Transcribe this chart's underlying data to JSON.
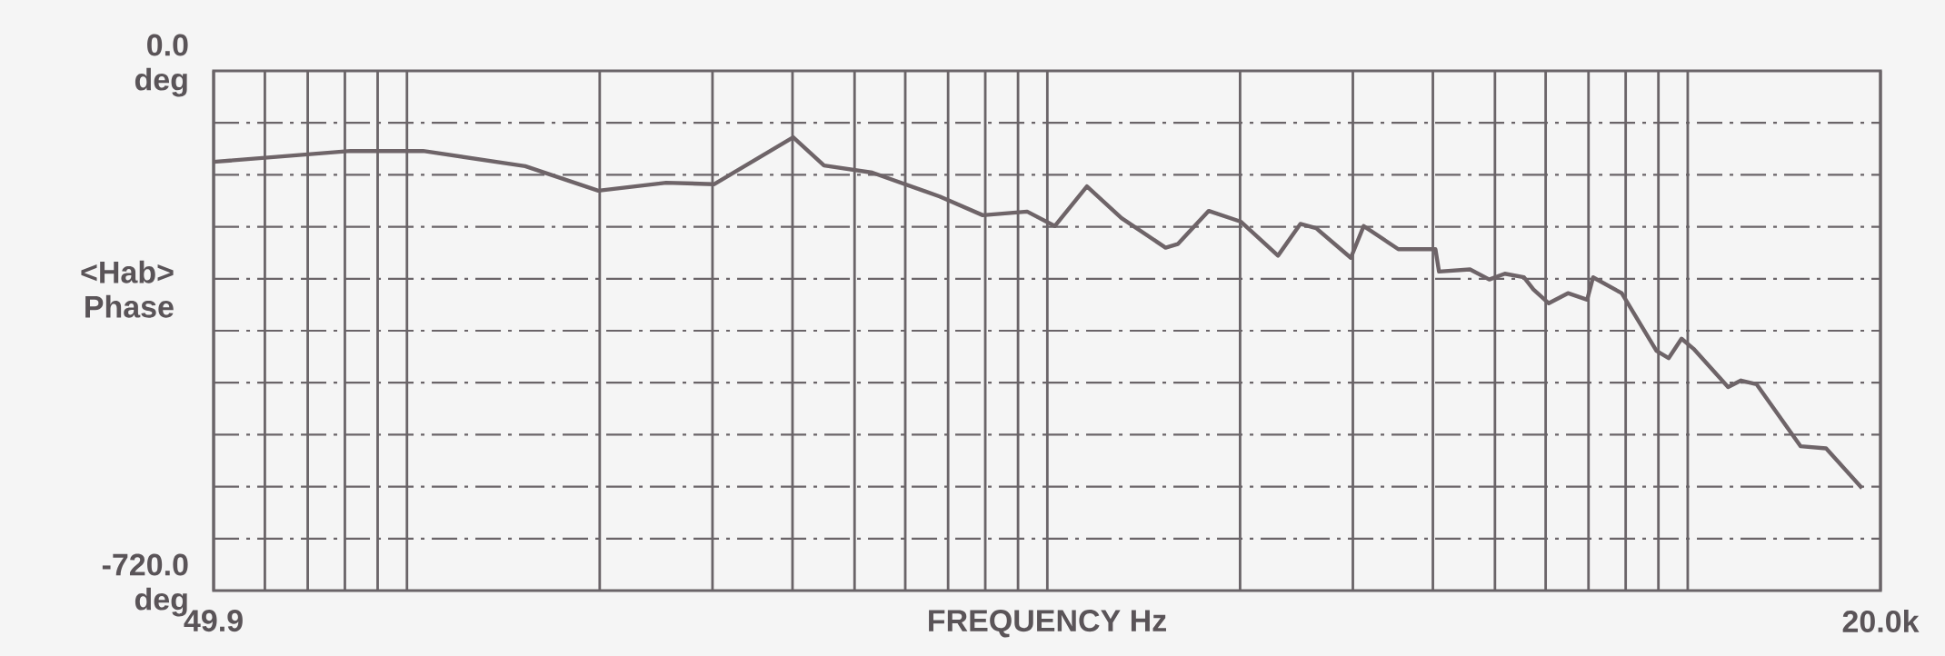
{
  "chart_data": {
    "type": "line",
    "xlabel": "FREQUENCY  Hz",
    "ylabel": "<Hab> Phase",
    "color": "#6e6468",
    "log": "x",
    "grid": true,
    "x": [
      49.9,
      81.6,
      106,
      153,
      199,
      254,
      302,
      401,
      448,
      533,
      679,
      793,
      930,
      1027,
      1153,
      1306,
      1530,
      1598,
      1787,
      2006,
      2292,
      2484,
      2629,
      2978,
      3119,
      3533,
      4037,
      4089,
      4571,
      4899,
      5180,
      5549,
      5743,
      6068,
      6502,
      6966,
      7116,
      7889,
      8937,
      9336,
      9780,
      10210,
      11562,
      12111,
      12804,
      15000,
      16447,
      18713
    ],
    "values": [
      -126,
      -111,
      -111,
      -132,
      -166,
      -155,
      -157,
      -92,
      -131,
      -141,
      -174,
      -200,
      -195,
      -215,
      -160,
      -204,
      -245,
      -240,
      -194,
      -209,
      -256,
      -212,
      -218,
      -259,
      -215,
      -247,
      -247,
      -278,
      -275,
      -289,
      -281,
      -286,
      -303,
      -322,
      -308,
      -317,
      -286,
      -308,
      -388,
      -398,
      -371,
      -385,
      -438,
      -429,
      -434,
      -520,
      -523,
      -578
    ],
    "xlim": [
      49.9,
      20000
    ],
    "ylim": [
      -720,
      0
    ],
    "xticks": [
      {
        "value": 49.9,
        "label": "49.9"
      },
      {
        "value": 60,
        "label": null
      },
      {
        "value": 70,
        "label": null
      },
      {
        "value": 80,
        "label": null
      },
      {
        "value": 90,
        "label": null
      },
      {
        "value": 100,
        "label": null
      },
      {
        "value": 200,
        "label": null
      },
      {
        "value": 300,
        "label": null
      },
      {
        "value": 400,
        "label": null
      },
      {
        "value": 500,
        "label": null
      },
      {
        "value": 600,
        "label": null
      },
      {
        "value": 700,
        "label": null
      },
      {
        "value": 800,
        "label": null
      },
      {
        "value": 900,
        "label": null
      },
      {
        "value": 1000,
        "label": null
      },
      {
        "value": 2000,
        "label": null
      },
      {
        "value": 3000,
        "label": null
      },
      {
        "value": 4000,
        "label": null
      },
      {
        "value": 5000,
        "label": null
      },
      {
        "value": 6000,
        "label": null
      },
      {
        "value": 7000,
        "label": null
      },
      {
        "value": 8000,
        "label": null
      },
      {
        "value": 9000,
        "label": null
      },
      {
        "value": 10000,
        "label": null
      },
      {
        "value": 20000,
        "label": "20.0k"
      }
    ],
    "yticks": [
      {
        "value": 0,
        "label": "0.0 deg"
      },
      {
        "value": -72,
        "label": null
      },
      {
        "value": -144,
        "label": null
      },
      {
        "value": -216,
        "label": null
      },
      {
        "value": -288,
        "label": null
      },
      {
        "value": -360,
        "label": null
      },
      {
        "value": -432,
        "label": null
      },
      {
        "value": -504,
        "label": null
      },
      {
        "value": -576,
        "label": null
      },
      {
        "value": -648,
        "label": null
      },
      {
        "value": -720,
        "label": "-720.0 deg"
      }
    ]
  }
}
